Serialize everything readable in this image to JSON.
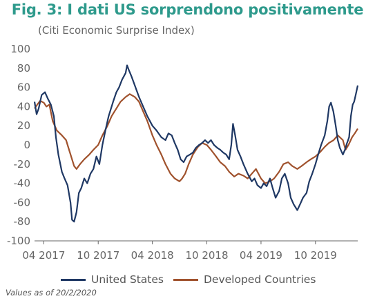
{
  "title": "Fig. 3: I dati US sorprendono positivamente",
  "subtitle": "(Citi Economic Surprise Index)",
  "footnote": "Values as of 20/2/2020",
  "colors": {
    "us": "#1f3864",
    "dev": "#a0522d",
    "title": "#2e9a8c",
    "text": "#666666"
  },
  "chart_data": {
    "type": "line",
    "ylim": [
      -100,
      100
    ],
    "yticks": [
      100,
      80,
      60,
      40,
      20,
      0,
      -20,
      -40,
      -60,
      -80,
      -100
    ],
    "xlim": [
      "2017-03-01",
      "2020-02-20"
    ],
    "xticks": [
      {
        "label": "04 2017",
        "date": "2017-04-01"
      },
      {
        "label": "10 2017",
        "date": "2017-10-01"
      },
      {
        "label": "04 2018",
        "date": "2018-04-01"
      },
      {
        "label": "10 2018",
        "date": "2018-10-01"
      },
      {
        "label": "04 2019",
        "date": "2019-04-01"
      },
      {
        "label": "10 2019",
        "date": "2019-10-01"
      }
    ],
    "series": [
      {
        "name": "United States",
        "color": "#1f3864",
        "points": [
          [
            "2017-03-01",
            45
          ],
          [
            "2017-03-08",
            32
          ],
          [
            "2017-03-15",
            38
          ],
          [
            "2017-03-25",
            52
          ],
          [
            "2017-04-05",
            55
          ],
          [
            "2017-04-15",
            48
          ],
          [
            "2017-04-25",
            42
          ],
          [
            "2017-05-05",
            30
          ],
          [
            "2017-05-12",
            8
          ],
          [
            "2017-05-20",
            -10
          ],
          [
            "2017-06-01",
            -28
          ],
          [
            "2017-06-10",
            -35
          ],
          [
            "2017-06-20",
            -42
          ],
          [
            "2017-06-30",
            -60
          ],
          [
            "2017-07-05",
            -78
          ],
          [
            "2017-07-12",
            -80
          ],
          [
            "2017-07-20",
            -70
          ],
          [
            "2017-07-28",
            -50
          ],
          [
            "2017-08-05",
            -45
          ],
          [
            "2017-08-15",
            -35
          ],
          [
            "2017-08-25",
            -40
          ],
          [
            "2017-09-05",
            -30
          ],
          [
            "2017-09-15",
            -25
          ],
          [
            "2017-09-25",
            -12
          ],
          [
            "2017-10-05",
            -20
          ],
          [
            "2017-10-15",
            0
          ],
          [
            "2017-10-25",
            15
          ],
          [
            "2017-11-05",
            30
          ],
          [
            "2017-11-20",
            45
          ],
          [
            "2017-12-01",
            55
          ],
          [
            "2017-12-10",
            60
          ],
          [
            "2017-12-20",
            68
          ],
          [
            "2018-01-01",
            75
          ],
          [
            "2018-01-06",
            83
          ],
          [
            "2018-01-12",
            78
          ],
          [
            "2018-01-20",
            72
          ],
          [
            "2018-02-01",
            62
          ],
          [
            "2018-02-15",
            50
          ],
          [
            "2018-03-01",
            40
          ],
          [
            "2018-03-15",
            30
          ],
          [
            "2018-04-01",
            20
          ],
          [
            "2018-04-15",
            15
          ],
          [
            "2018-05-01",
            8
          ],
          [
            "2018-05-15",
            5
          ],
          [
            "2018-05-25",
            12
          ],
          [
            "2018-06-05",
            10
          ],
          [
            "2018-06-15",
            2
          ],
          [
            "2018-06-25",
            -5
          ],
          [
            "2018-07-05",
            -15
          ],
          [
            "2018-07-15",
            -18
          ],
          [
            "2018-07-25",
            -12
          ],
          [
            "2018-08-05",
            -10
          ],
          [
            "2018-08-15",
            -8
          ],
          [
            "2018-08-25",
            -3
          ],
          [
            "2018-09-05",
            0
          ],
          [
            "2018-09-15",
            2
          ],
          [
            "2018-09-25",
            5
          ],
          [
            "2018-10-05",
            2
          ],
          [
            "2018-10-15",
            5
          ],
          [
            "2018-10-25",
            0
          ],
          [
            "2018-11-05",
            -3
          ],
          [
            "2018-11-15",
            -5
          ],
          [
            "2018-11-25",
            -8
          ],
          [
            "2018-12-05",
            -10
          ],
          [
            "2018-12-15",
            -15
          ],
          [
            "2018-12-22",
            0
          ],
          [
            "2018-12-28",
            22
          ],
          [
            "2019-01-04",
            10
          ],
          [
            "2019-01-12",
            -5
          ],
          [
            "2019-01-22",
            -12
          ],
          [
            "2019-02-01",
            -20
          ],
          [
            "2019-02-15",
            -30
          ],
          [
            "2019-03-01",
            -38
          ],
          [
            "2019-03-10",
            -35
          ],
          [
            "2019-03-20",
            -42
          ],
          [
            "2019-04-01",
            -45
          ],
          [
            "2019-04-10",
            -40
          ],
          [
            "2019-04-20",
            -43
          ],
          [
            "2019-05-01",
            -35
          ],
          [
            "2019-05-10",
            -45
          ],
          [
            "2019-05-20",
            -55
          ],
          [
            "2019-06-01",
            -48
          ],
          [
            "2019-06-10",
            -35
          ],
          [
            "2019-06-20",
            -30
          ],
          [
            "2019-07-01",
            -40
          ],
          [
            "2019-07-10",
            -55
          ],
          [
            "2019-07-20",
            -62
          ],
          [
            "2019-08-01",
            -68
          ],
          [
            "2019-08-10",
            -62
          ],
          [
            "2019-08-20",
            -55
          ],
          [
            "2019-09-01",
            -50
          ],
          [
            "2019-09-10",
            -38
          ],
          [
            "2019-09-20",
            -30
          ],
          [
            "2019-10-01",
            -20
          ],
          [
            "2019-10-10",
            -10
          ],
          [
            "2019-10-20",
            0
          ],
          [
            "2019-11-01",
            10
          ],
          [
            "2019-11-10",
            25
          ],
          [
            "2019-11-16",
            40
          ],
          [
            "2019-11-22",
            44
          ],
          [
            "2019-11-30",
            35
          ],
          [
            "2019-12-08",
            20
          ],
          [
            "2019-12-15",
            5
          ],
          [
            "2019-12-22",
            -3
          ],
          [
            "2020-01-01",
            -10
          ],
          [
            "2020-01-08",
            -5
          ],
          [
            "2020-01-15",
            2
          ],
          [
            "2020-01-22",
            8
          ],
          [
            "2020-01-28",
            30
          ],
          [
            "2020-02-03",
            42
          ],
          [
            "2020-02-08",
            45
          ],
          [
            "2020-02-13",
            52
          ],
          [
            "2020-02-20",
            62
          ]
        ]
      },
      {
        "name": "Developed Countries",
        "color": "#a0522d",
        "points": [
          [
            "2017-03-01",
            38
          ],
          [
            "2017-03-10",
            42
          ],
          [
            "2017-03-20",
            46
          ],
          [
            "2017-04-01",
            44
          ],
          [
            "2017-04-10",
            40
          ],
          [
            "2017-04-20",
            42
          ],
          [
            "2017-05-01",
            25
          ],
          [
            "2017-05-15",
            15
          ],
          [
            "2017-06-01",
            10
          ],
          [
            "2017-06-15",
            5
          ],
          [
            "2017-06-25",
            -5
          ],
          [
            "2017-07-05",
            -15
          ],
          [
            "2017-07-12",
            -22
          ],
          [
            "2017-07-20",
            -25
          ],
          [
            "2017-08-01",
            -20
          ],
          [
            "2017-08-15",
            -15
          ],
          [
            "2017-09-01",
            -10
          ],
          [
            "2017-09-15",
            -5
          ],
          [
            "2017-10-01",
            0
          ],
          [
            "2017-10-15",
            10
          ],
          [
            "2017-11-01",
            20
          ],
          [
            "2017-11-15",
            30
          ],
          [
            "2017-12-01",
            38
          ],
          [
            "2017-12-15",
            45
          ],
          [
            "2018-01-01",
            50
          ],
          [
            "2018-01-15",
            53
          ],
          [
            "2018-02-01",
            50
          ],
          [
            "2018-02-15",
            45
          ],
          [
            "2018-03-01",
            35
          ],
          [
            "2018-03-15",
            25
          ],
          [
            "2018-04-01",
            10
          ],
          [
            "2018-04-15",
            0
          ],
          [
            "2018-05-01",
            -10
          ],
          [
            "2018-05-15",
            -20
          ],
          [
            "2018-06-01",
            -30
          ],
          [
            "2018-06-15",
            -35
          ],
          [
            "2018-07-01",
            -38
          ],
          [
            "2018-07-10",
            -35
          ],
          [
            "2018-07-20",
            -30
          ],
          [
            "2018-08-01",
            -20
          ],
          [
            "2018-08-15",
            -10
          ],
          [
            "2018-09-01",
            -2
          ],
          [
            "2018-09-15",
            2
          ],
          [
            "2018-10-01",
            0
          ],
          [
            "2018-10-15",
            -5
          ],
          [
            "2018-11-01",
            -12
          ],
          [
            "2018-11-15",
            -18
          ],
          [
            "2018-12-01",
            -22
          ],
          [
            "2018-12-15",
            -28
          ],
          [
            "2019-01-01",
            -33
          ],
          [
            "2019-01-15",
            -30
          ],
          [
            "2019-02-01",
            -32
          ],
          [
            "2019-02-15",
            -35
          ],
          [
            "2019-03-01",
            -30
          ],
          [
            "2019-03-15",
            -25
          ],
          [
            "2019-04-01",
            -35
          ],
          [
            "2019-04-15",
            -40
          ],
          [
            "2019-05-01",
            -38
          ],
          [
            "2019-05-15",
            -35
          ],
          [
            "2019-06-01",
            -28
          ],
          [
            "2019-06-15",
            -20
          ],
          [
            "2019-07-01",
            -18
          ],
          [
            "2019-07-15",
            -22
          ],
          [
            "2019-08-01",
            -25
          ],
          [
            "2019-08-15",
            -22
          ],
          [
            "2019-09-01",
            -18
          ],
          [
            "2019-09-15",
            -15
          ],
          [
            "2019-10-01",
            -12
          ],
          [
            "2019-10-15",
            -8
          ],
          [
            "2019-11-01",
            -2
          ],
          [
            "2019-11-15",
            2
          ],
          [
            "2019-12-01",
            5
          ],
          [
            "2019-12-15",
            10
          ],
          [
            "2020-01-01",
            5
          ],
          [
            "2020-01-10",
            -5
          ],
          [
            "2020-01-20",
            0
          ],
          [
            "2020-02-01",
            8
          ],
          [
            "2020-02-10",
            12
          ],
          [
            "2020-02-20",
            17
          ]
        ]
      }
    ]
  }
}
